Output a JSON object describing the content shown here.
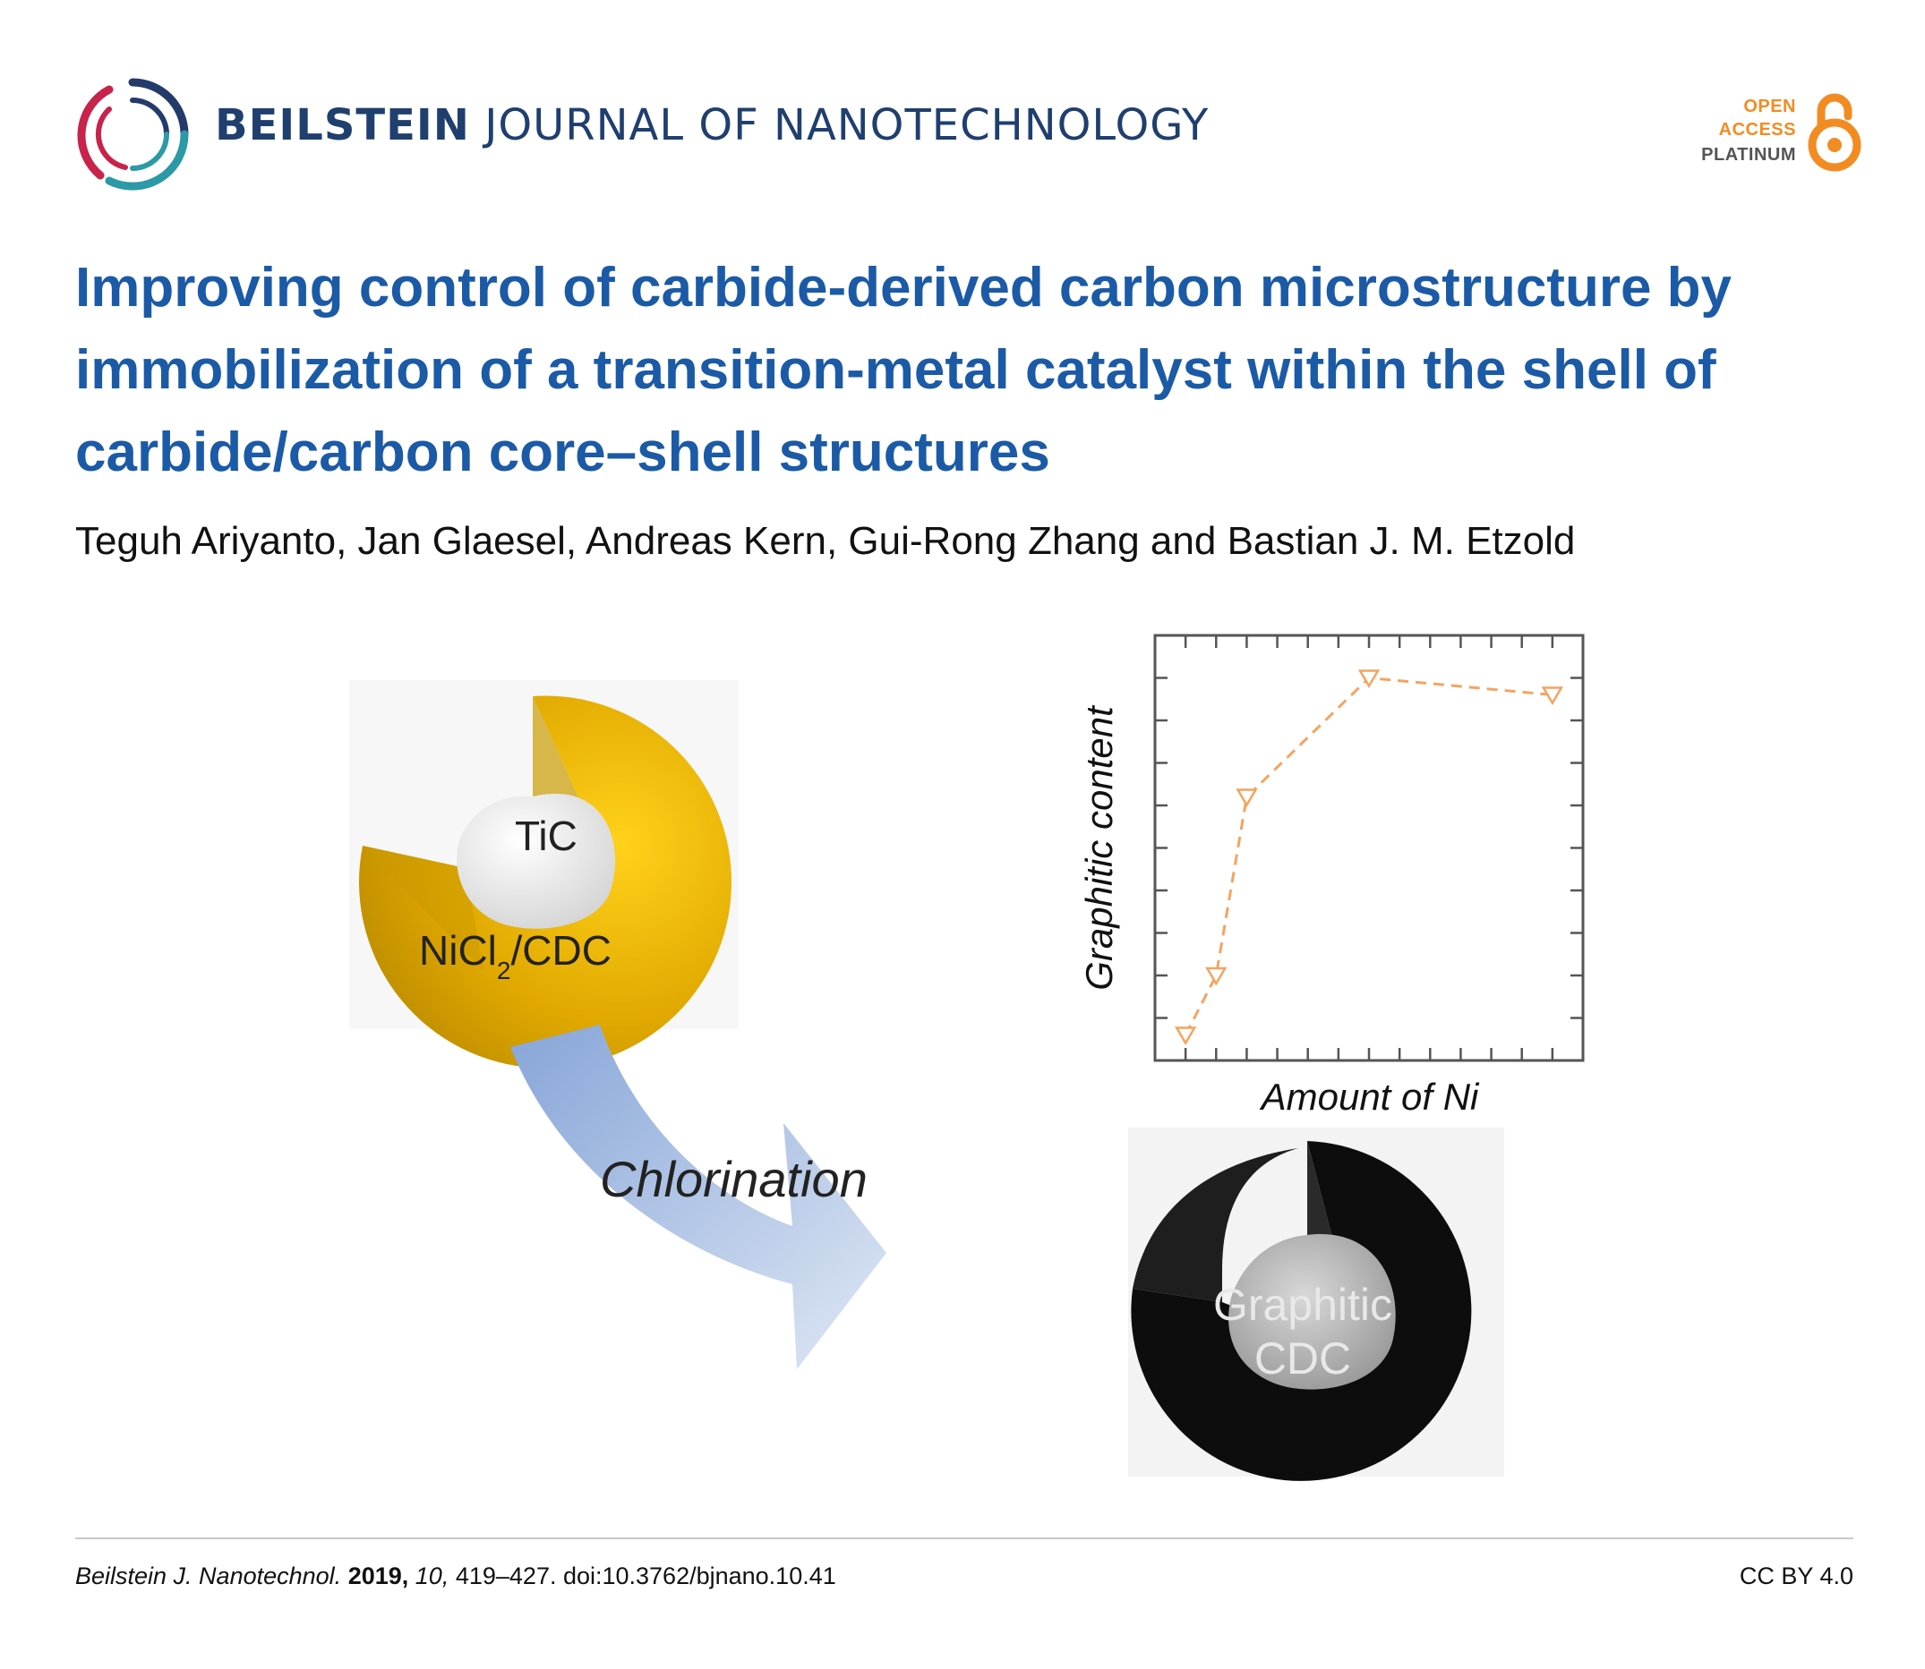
{
  "header": {
    "journal_bold": "BEILSTEIN",
    "journal_rest": "JOURNAL OF NANOTECHNOLOGY",
    "badge": {
      "line1": "OPEN",
      "line2": "ACCESS",
      "line3": "PLATINUM"
    }
  },
  "article": {
    "title": "Improving control of carbide-derived carbon microstructure by immobilization of a transition-metal catalyst within the shell of carbide/carbon core–shell structures",
    "authors": "Teguh Ariyanto, Jan Glaesel, Andreas Kern, Gui-Rong Zhang and Bastian J. M. Etzold"
  },
  "graphic": {
    "particle_top": {
      "core_label": "TiC",
      "shell_label_main": "NiCl",
      "shell_label_sub": "2",
      "shell_label_tail": "/CDC"
    },
    "arrow_label": "Chlorination",
    "particle_bottom": {
      "label_line1": "Graphitic",
      "label_line2": "CDC"
    }
  },
  "chart_data": {
    "type": "line",
    "xlabel": "Amount of Ni",
    "ylabel": "Graphitic content",
    "marker": "triangle-down",
    "line_style": "dashed",
    "color": "#f4a460",
    "x": [
      0,
      1,
      2,
      6,
      12
    ],
    "y": [
      0.06,
      0.2,
      0.62,
      0.9,
      0.86
    ],
    "xlim": [
      -1,
      13
    ],
    "ylim": [
      0,
      1
    ],
    "tick_labels_shown": false
  },
  "footer": {
    "journal_abbrev": "Beilstein J. Nanotechnol.",
    "year": "2019,",
    "volume": "10,",
    "pages_doi": "419–427. doi:10.3762/bjnano.10.41",
    "license": "CC BY 4.0"
  },
  "colors": {
    "journal_text": "#1f3f6e",
    "title_blue": "#1b5aa6",
    "oa_orange": "#f28c22",
    "shell_gold": "#daa520"
  }
}
